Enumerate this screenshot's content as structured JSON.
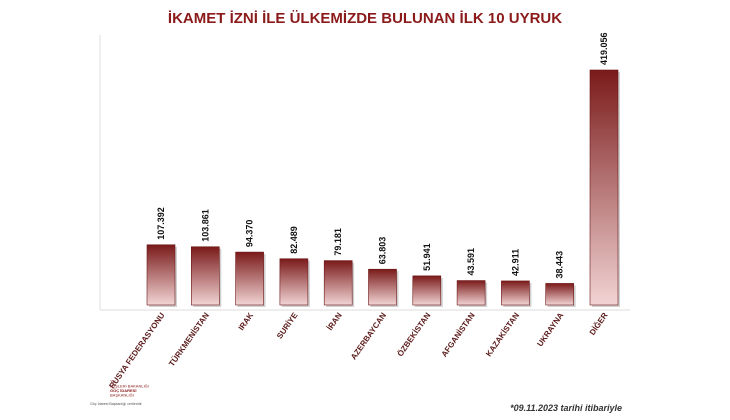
{
  "chart_data": {
    "type": "bar",
    "title": "İKAMET İZNİ İLE ÜLKEMİZDE BULUNAN İLK 10 UYRUK",
    "categories": [
      "RUSYA FEDERASYONU",
      "TÜRKMENİSTAN",
      "IRAK",
      "SURİYE",
      "İRAN",
      "AZERBAYCAN",
      "ÖZBEKİSTAN",
      "AFGANİSTAN",
      "KAZAKİSTAN",
      "UKRAYNA",
      "DİĞER"
    ],
    "values": [
      107392,
      103861,
      94370,
      82489,
      79181,
      63803,
      51941,
      43591,
      42911,
      38443,
      419056
    ],
    "value_labels": [
      "107.392",
      "103.861",
      "94.370",
      "82.489",
      "79.181",
      "63.803",
      "51.941",
      "43.591",
      "42.911",
      "38.443",
      "419.056"
    ],
    "xlabel": "",
    "ylabel": "",
    "ylim": [
      0,
      419056
    ],
    "grid": false,
    "legend": "none",
    "colors": {
      "bar_top": "#7a1a1a",
      "bar_bottom": "#f2d4d4",
      "title": "#8b1a1a",
      "axis": "#d0d0d0"
    }
  },
  "footnote": "*09.11.2023 tarihi itibariyle",
  "logo": {
    "line1": "T.C.",
    "line2": "İÇİŞLERİ BAKANLIĞI",
    "line3": "GÖÇ İDARESİ",
    "line4": "BAŞKANLIĞI",
    "caption": "Göç İdaresi Başkanlığı verileridir."
  }
}
